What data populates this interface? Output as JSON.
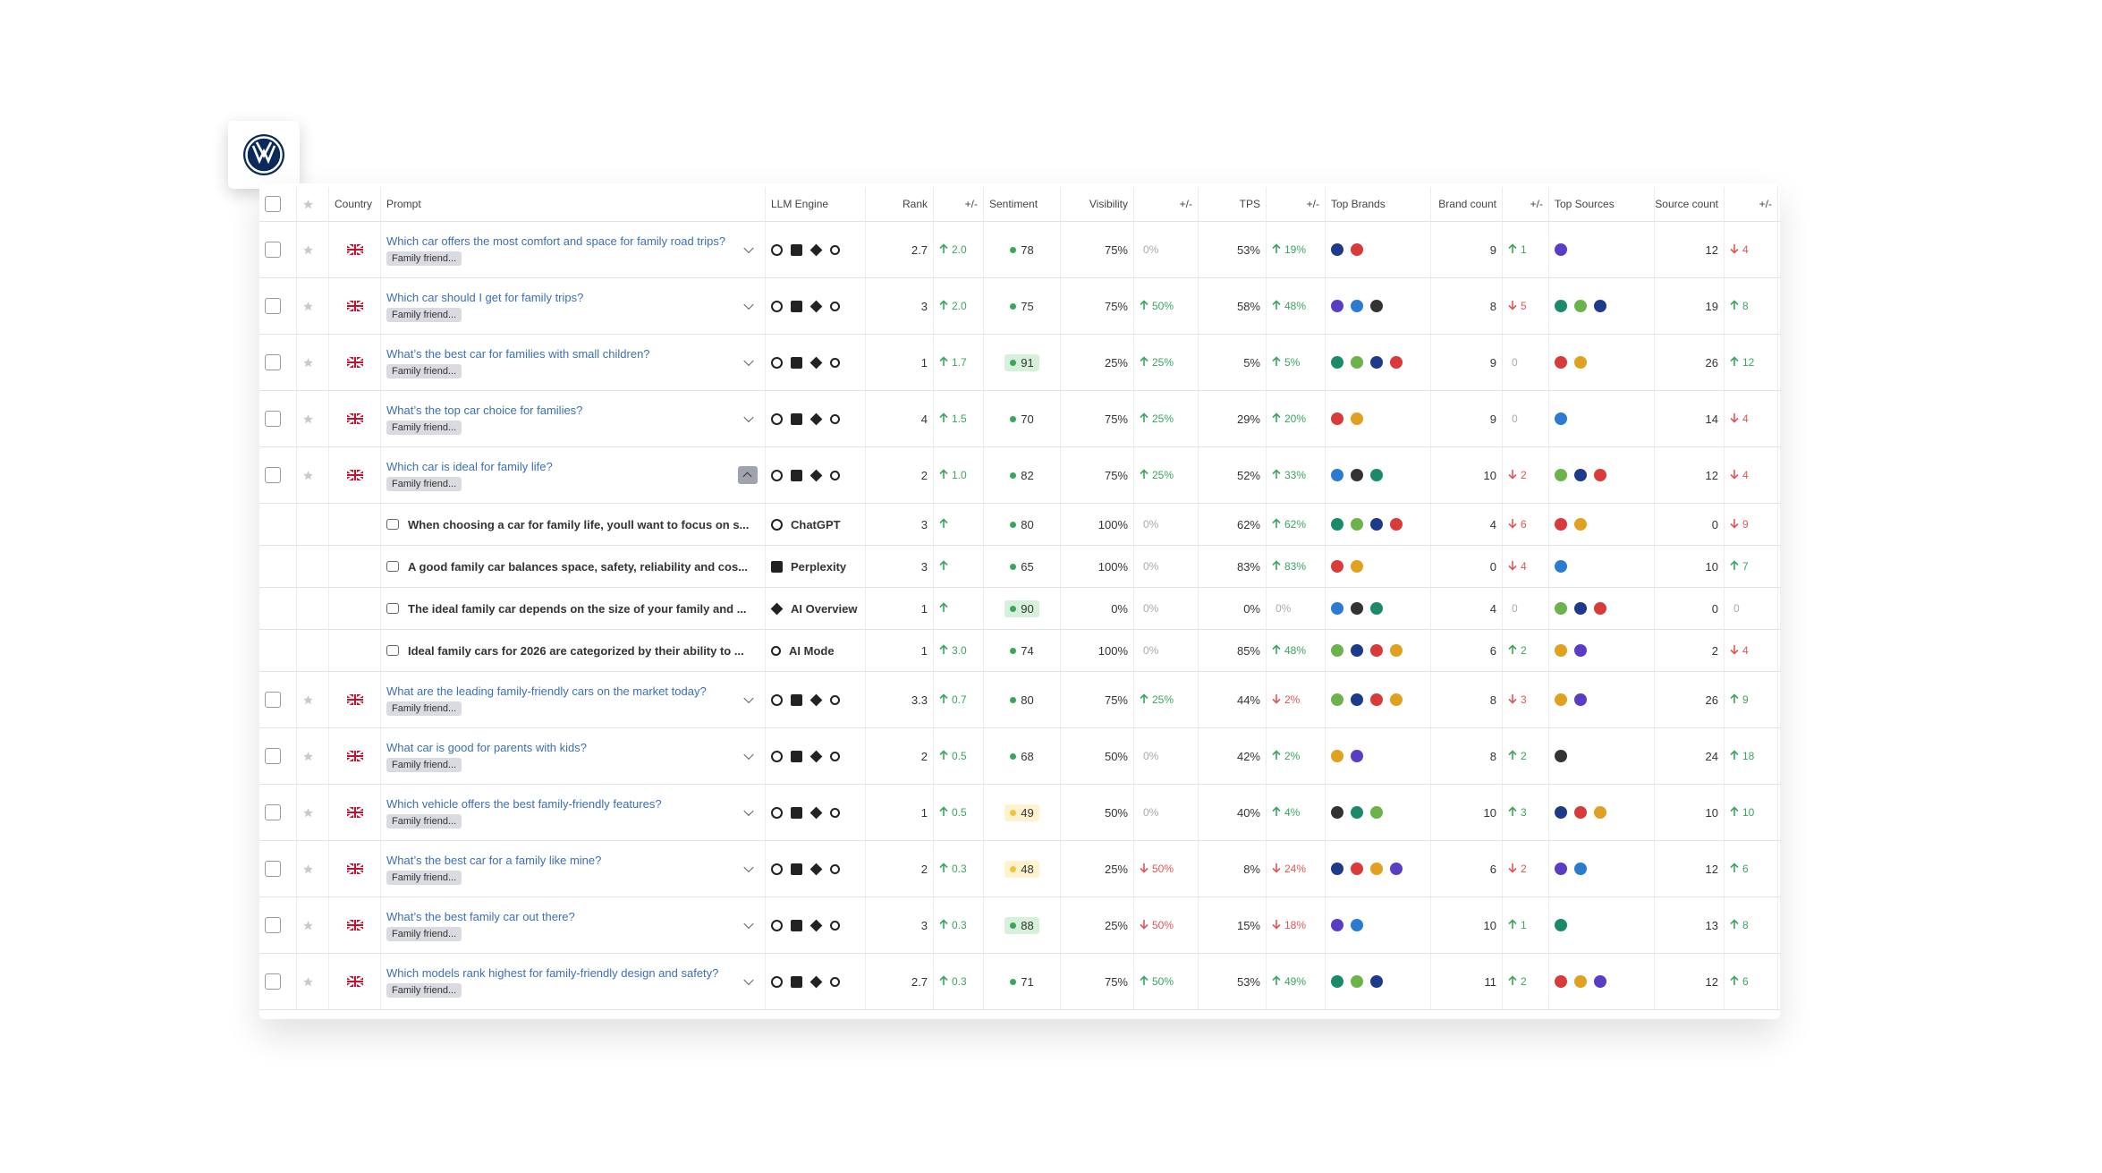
{
  "table": {
    "header": [
      "Country",
      "Prompt",
      "LLM Engine",
      "Rank",
      "+/-",
      "Sentiment",
      "Visibility",
      "+/-",
      "TPS",
      "+/-",
      "Top Brands",
      "Brand count",
      "+/-",
      "Top Sources",
      "Source count",
      "+/-"
    ],
    "rows": [
      {
        "prompt": "Which car offers the most comfort and space for family road trips?",
        "tag": "Family friend...",
        "rank": 2.7,
        "rank_change": {
          "text": "2.0",
          "dir": "up"
        },
        "sentiment": 78,
        "visibility": "75%",
        "visibility_change": {
          "text": "0%",
          "dir": "flat"
        },
        "tps": "53%",
        "tps_change": {
          "text": "19%",
          "dir": "up"
        },
        "brand_count": 9,
        "brand_change": {
          "text": "1",
          "dir": "up"
        },
        "source_count": 12,
        "source_change": {
          "text": "4",
          "dir": "down"
        }
      },
      {
        "prompt": "Which car should I get for family trips?",
        "tag": "Family friend...",
        "rank": 3,
        "rank_change": {
          "text": "2.0",
          "dir": "up"
        },
        "sentiment": 75,
        "visibility": "75%",
        "visibility_change": {
          "text": "50%",
          "dir": "up"
        },
        "tps": "58%",
        "tps_change": {
          "text": "48%",
          "dir": "up"
        },
        "brand_count": 8,
        "brand_change": {
          "text": "5",
          "dir": "down"
        },
        "source_count": 19,
        "source_change": {
          "text": "8",
          "dir": "up"
        }
      },
      {
        "prompt": "What’s the best car for families with small children?",
        "tag": "Family friend...",
        "rank": 1,
        "rank_change": {
          "text": "1.7",
          "dir": "up"
        },
        "sentiment": 91,
        "visibility": "25%",
        "visibility_change": {
          "text": "25%",
          "dir": "up"
        },
        "tps": "5%",
        "tps_change": {
          "text": "5%",
          "dir": "up"
        },
        "brand_count": 9,
        "brand_change": {
          "text": "0",
          "dir": "flat"
        },
        "source_count": 26,
        "source_change": {
          "text": "12",
          "dir": "up"
        }
      },
      {
        "prompt": "What’s the top car choice for families?",
        "tag": "Family friend...",
        "rank": 4,
        "rank_change": {
          "text": "1.5",
          "dir": "up"
        },
        "sentiment": 70,
        "visibility": "75%",
        "visibility_change": {
          "text": "25%",
          "dir": "up"
        },
        "tps": "29%",
        "tps_change": {
          "text": "20%",
          "dir": "up"
        },
        "brand_count": 9,
        "brand_change": {
          "text": "0",
          "dir": "flat"
        },
        "source_count": 14,
        "source_change": {
          "text": "4",
          "dir": "down"
        }
      },
      {
        "prompt": "Which car is ideal for family life?",
        "tag": "Family friend...",
        "rank": 2,
        "rank_change": {
          "text": "1.0",
          "dir": "up"
        },
        "sentiment": 82,
        "visibility": "75%",
        "visibility_change": {
          "text": "25%",
          "dir": "up"
        },
        "tps": "52%",
        "tps_change": {
          "text": "33%",
          "dir": "up"
        },
        "brand_count": 10,
        "brand_change": {
          "text": "2",
          "dir": "down"
        },
        "source_count": 12,
        "source_change": {
          "text": "4",
          "dir": "down"
        },
        "responses": [
          {
            "text": "When choosing a car for family life, youll want to focus on s...",
            "engine": "ChatGPT",
            "rank": 3,
            "rank_change": {
              "text": null,
              "dir": "up"
            },
            "sentiment": 80,
            "visibility": "100%",
            "visibility_change": {
              "text": "0%",
              "dir": "flat"
            },
            "tps": "62%",
            "tps_change": {
              "text": "62%",
              "dir": "up"
            },
            "brand_count": 4,
            "brand_change": {
              "text": "6",
              "dir": "down"
            },
            "source_count": 0,
            "source_change": {
              "text": "9",
              "dir": "down"
            }
          },
          {
            "text": "A good family car balances space, safety, reliability and cos...",
            "engine": "Perplexity",
            "rank": 3,
            "rank_change": {
              "text": null,
              "dir": "up"
            },
            "sentiment": 65,
            "visibility": "100%",
            "visibility_change": {
              "text": "0%",
              "dir": "flat"
            },
            "tps": "83%",
            "tps_change": {
              "text": "83%",
              "dir": "up"
            },
            "brand_count": 0,
            "brand_change": {
              "text": "4",
              "dir": "down"
            },
            "source_count": 10,
            "source_change": {
              "text": "7",
              "dir": "up"
            }
          },
          {
            "text": "The ideal family car depends on the size of your family and ...",
            "engine": "AI Overview",
            "rank": 1,
            "rank_change": {
              "text": null,
              "dir": "up"
            },
            "sentiment": 90,
            "visibility": "0%",
            "visibility_change": {
              "text": "0%",
              "dir": "flat"
            },
            "tps": "0%",
            "tps_change": {
              "text": "0%",
              "dir": "flat"
            },
            "brand_count": 4,
            "brand_change": {
              "text": "0",
              "dir": "flat"
            },
            "source_count": 0,
            "source_change": {
              "text": "0",
              "dir": "flat"
            }
          },
          {
            "text": "Ideal family cars for 2026 are categorized by their ability to ...",
            "engine": "AI Mode",
            "rank": 1,
            "rank_change": {
              "text": "3.0",
              "dir": "up"
            },
            "sentiment": 74,
            "visibility": "100%",
            "visibility_change": {
              "text": "0%",
              "dir": "flat"
            },
            "tps": "85%",
            "tps_change": {
              "text": "48%",
              "dir": "up"
            },
            "brand_count": 6,
            "brand_change": {
              "text": "2",
              "dir": "up"
            },
            "source_count": 2,
            "source_change": {
              "text": "4",
              "dir": "down"
            }
          }
        ]
      },
      {
        "prompt": "What are the leading family-friendly cars on the market today?",
        "tag": "Family friend...",
        "rank": 3.3,
        "rank_change": {
          "text": "0.7",
          "dir": "up"
        },
        "sentiment": 80,
        "visibility": "75%",
        "visibility_change": {
          "text": "25%",
          "dir": "up"
        },
        "tps": "44%",
        "tps_change": {
          "text": "2%",
          "dir": "down"
        },
        "brand_count": 8,
        "brand_change": {
          "text": "3",
          "dir": "down"
        },
        "source_count": 26,
        "source_change": {
          "text": "9",
          "dir": "up"
        }
      },
      {
        "prompt": "What car is good for parents with kids?",
        "tag": "Family friend...",
        "rank": 2,
        "rank_change": {
          "text": "0.5",
          "dir": "up"
        },
        "sentiment": 68,
        "visibility": "50%",
        "visibility_change": {
          "text": "0%",
          "dir": "flat"
        },
        "tps": "42%",
        "tps_change": {
          "text": "2%",
          "dir": "up"
        },
        "brand_count": 8,
        "brand_change": {
          "text": "2",
          "dir": "up"
        },
        "source_count": 24,
        "source_change": {
          "text": "18",
          "dir": "up"
        }
      },
      {
        "prompt": "Which vehicle offers the best family-friendly features?",
        "tag": "Family friend...",
        "rank": 1,
        "rank_change": {
          "text": "0.5",
          "dir": "up"
        },
        "sentiment": 49,
        "visibility": "50%",
        "visibility_change": {
          "text": "0%",
          "dir": "flat"
        },
        "tps": "40%",
        "tps_change": {
          "text": "4%",
          "dir": "up"
        },
        "brand_count": 10,
        "brand_change": {
          "text": "3",
          "dir": "up"
        },
        "source_count": 10,
        "source_change": {
          "text": "10",
          "dir": "up"
        }
      },
      {
        "prompt": "What’s the best car for a family like mine?",
        "tag": "Family friend...",
        "rank": 2,
        "rank_change": {
          "text": "0.3",
          "dir": "up"
        },
        "sentiment": 48,
        "visibility": "25%",
        "visibility_change": {
          "text": "50%",
          "dir": "down"
        },
        "tps": "8%",
        "tps_change": {
          "text": "24%",
          "dir": "down"
        },
        "brand_count": 6,
        "brand_change": {
          "text": "2",
          "dir": "down"
        },
        "source_count": 12,
        "source_change": {
          "text": "6",
          "dir": "up"
        }
      },
      {
        "prompt": "What’s the best family car out there?",
        "tag": "Family friend...",
        "rank": 3,
        "rank_change": {
          "text": "0.3",
          "dir": "up"
        },
        "sentiment": 88,
        "visibility": "25%",
        "visibility_change": {
          "text": "50%",
          "dir": "down"
        },
        "tps": "15%",
        "tps_change": {
          "text": "18%",
          "dir": "down"
        },
        "brand_count": 10,
        "brand_change": {
          "text": "1",
          "dir": "up"
        },
        "source_count": 13,
        "source_change": {
          "text": "8",
          "dir": "up"
        }
      },
      {
        "prompt": "Which models rank highest for family-friendly design and safety?",
        "tag": "Family friend...",
        "rank": 2.7,
        "rank_change": {
          "text": "0.3",
          "dir": "up"
        },
        "sentiment": 71,
        "visibility": "75%",
        "visibility_change": {
          "text": "50%",
          "dir": "up"
        },
        "tps": "53%",
        "tps_change": {
          "text": "49%",
          "dir": "up"
        },
        "brand_count": 11,
        "brand_change": {
          "text": "2",
          "dir": "up"
        },
        "source_count": 12,
        "source_change": {
          "text": "6",
          "dir": "up"
        }
      }
    ]
  }
}
